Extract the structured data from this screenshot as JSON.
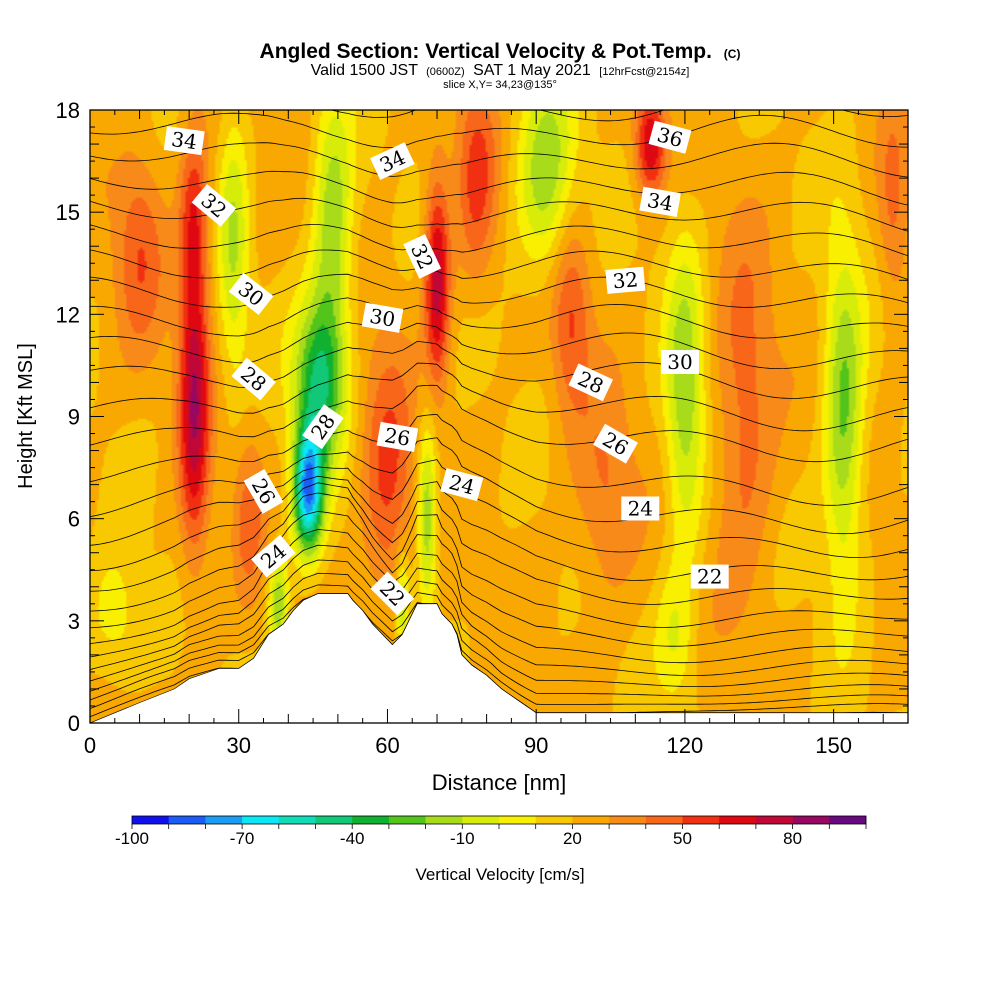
{
  "chart_data": {
    "type": "heatmap",
    "title": "Angled Section: Vertical Velocity & Pot.Temp.",
    "title_suffix": "(C)",
    "subtitle": {
      "valid": "Valid 1500 JST",
      "z_time": "(0600Z)",
      "date": "SAT 1 May 2021",
      "forecast": "[12hrFcst@2154z]"
    },
    "slice_label": "slice X,Y= 34,23@135°",
    "xlabel": "Distance [nm]",
    "ylabel": "Height [Kft MSL]",
    "xlim": [
      0,
      165
    ],
    "ylim": [
      0,
      18
    ],
    "x_ticks": [
      0,
      30,
      60,
      90,
      120,
      150
    ],
    "y_ticks": [
      0,
      3,
      6,
      9,
      12,
      15,
      18
    ],
    "colorbar": {
      "label": "Vertical Velocity [cm/s]",
      "tick_labels": [
        -100,
        -70,
        -40,
        -10,
        20,
        50,
        80
      ],
      "colors": [
        "#1010ee",
        "#1a5cf5",
        "#1a9cf5",
        "#0ae8f5",
        "#10ddb8",
        "#10c878",
        "#10b030",
        "#52c41a",
        "#a8dc1a",
        "#d8ec0a",
        "#f8f000",
        "#f8c800",
        "#f8a800",
        "#f88a1a",
        "#f8661a",
        "#f03010",
        "#e00810",
        "#c00838",
        "#980860",
        "#6a0880"
      ]
    },
    "terrain_kft": [
      [
        0,
        0
      ],
      [
        10,
        0.6
      ],
      [
        17,
        1.0
      ],
      [
        20,
        1.3
      ],
      [
        26,
        1.6
      ],
      [
        30,
        1.6
      ],
      [
        33,
        1.9
      ],
      [
        36,
        2.6
      ],
      [
        39,
        2.9
      ],
      [
        41,
        3.3
      ],
      [
        43,
        3.6
      ],
      [
        46,
        3.8
      ],
      [
        50,
        3.8
      ],
      [
        52,
        3.8
      ],
      [
        53,
        3.6
      ],
      [
        55,
        3.3
      ],
      [
        57,
        2.9
      ],
      [
        59,
        2.6
      ],
      [
        61,
        2.3
      ],
      [
        63,
        2.6
      ],
      [
        65,
        3.2
      ],
      [
        66,
        3.5
      ],
      [
        68,
        3.5
      ],
      [
        70,
        3.5
      ],
      [
        71,
        3.2
      ],
      [
        73,
        2.9
      ],
      [
        74,
        2.6
      ],
      [
        75,
        2.0
      ],
      [
        77,
        1.7
      ],
      [
        80,
        1.4
      ],
      [
        83,
        1.0
      ],
      [
        87,
        0.6
      ],
      [
        90,
        0.3
      ],
      [
        165,
        0.3
      ]
    ],
    "vertical_velocity_features": [
      {
        "x": 21,
        "y": 9.5,
        "sx": 3,
        "sy": 4.5,
        "v": 55
      },
      {
        "x": 21,
        "y": 15,
        "sx": 3,
        "sy": 2.5,
        "v": 30
      },
      {
        "x": 44,
        "y": 6.8,
        "sx": 3,
        "sy": 1.8,
        "v": -95
      },
      {
        "x": 46,
        "y": 10,
        "sx": 5,
        "sy": 2.5,
        "v": -60
      },
      {
        "x": 49,
        "y": 14.5,
        "sx": 4,
        "sy": 4,
        "v": -40
      },
      {
        "x": 29,
        "y": 14,
        "sx": 3,
        "sy": 4,
        "v": -30
      },
      {
        "x": 32,
        "y": 6,
        "sx": 3,
        "sy": 2.5,
        "v": 20
      },
      {
        "x": 38,
        "y": 3.5,
        "sx": 2,
        "sy": 1.5,
        "v": -40
      },
      {
        "x": 70,
        "y": 13,
        "sx": 2.5,
        "sy": 3,
        "v": 55
      },
      {
        "x": 60,
        "y": 7,
        "sx": 5,
        "sy": 4,
        "v": 30
      },
      {
        "x": 68,
        "y": 6,
        "sx": 2,
        "sy": 3,
        "v": -40
      },
      {
        "x": 63,
        "y": 3.5,
        "sx": 1.5,
        "sy": 1.5,
        "v": -35
      },
      {
        "x": 78,
        "y": 16,
        "sx": 4,
        "sy": 3,
        "v": 30
      },
      {
        "x": 92,
        "y": 16,
        "sx": 6,
        "sy": 3,
        "v": -40
      },
      {
        "x": 97,
        "y": 12,
        "sx": 4,
        "sy": 3,
        "v": 30
      },
      {
        "x": 104,
        "y": 6.5,
        "sx": 6,
        "sy": 3,
        "v": 20
      },
      {
        "x": 120,
        "y": 9.5,
        "sx": 4,
        "sy": 4.5,
        "v": -40
      },
      {
        "x": 113,
        "y": 17,
        "sx": 3,
        "sy": 1.5,
        "v": 50
      },
      {
        "x": 118,
        "y": 2.5,
        "sx": 4,
        "sy": 2,
        "v": -20
      },
      {
        "x": 132,
        "y": 9,
        "sx": 6,
        "sy": 5,
        "v": 25
      },
      {
        "x": 152,
        "y": 9,
        "sx": 4,
        "sy": 5,
        "v": -45
      },
      {
        "x": 162,
        "y": 15,
        "sx": 3,
        "sy": 3,
        "v": 20
      },
      {
        "x": 5,
        "y": 3,
        "sx": 6,
        "sy": 2,
        "v": -20
      },
      {
        "x": 10,
        "y": 14,
        "sx": 5,
        "sy": 3,
        "v": 25
      }
    ],
    "theta_contours_base_kft": [
      0.2,
      0.45,
      0.7,
      0.95,
      1.25,
      1.6,
      2.0,
      2.45,
      3.0,
      3.6,
      4.3,
      5.0,
      5.8,
      6.6,
      7.5,
      8.4,
      9.3,
      10.2,
      11.0,
      11.8,
      12.6,
      13.4,
      14.2,
      15.0,
      15.8,
      16.6,
      17.4,
      18.2
    ],
    "contour_labels": [
      {
        "text": "34",
        "x": 19,
        "y": 17.1,
        "angle": 8
      },
      {
        "text": "32",
        "x": 25,
        "y": 15.2,
        "angle": 40
      },
      {
        "text": "30",
        "x": 32.5,
        "y": 12.6,
        "angle": 38
      },
      {
        "text": "28",
        "x": 33,
        "y": 10.1,
        "angle": 40
      },
      {
        "text": "26",
        "x": 35,
        "y": 6.8,
        "angle": 60
      },
      {
        "text": "24",
        "x": 37,
        "y": 4.9,
        "angle": -40
      },
      {
        "text": "28",
        "x": 47,
        "y": 8.7,
        "angle": -55
      },
      {
        "text": "34",
        "x": 61,
        "y": 16.5,
        "angle": -25
      },
      {
        "text": "30",
        "x": 59,
        "y": 11.9,
        "angle": 10
      },
      {
        "text": "32",
        "x": 67,
        "y": 13.7,
        "angle": 65
      },
      {
        "text": "26",
        "x": 62,
        "y": 8.4,
        "angle": 10
      },
      {
        "text": "24",
        "x": 75,
        "y": 7.0,
        "angle": 15
      },
      {
        "text": "22",
        "x": 61,
        "y": 3.8,
        "angle": 45
      },
      {
        "text": "36",
        "x": 117,
        "y": 17.2,
        "angle": 15
      },
      {
        "text": "34",
        "x": 115,
        "y": 15.3,
        "angle": 10
      },
      {
        "text": "32",
        "x": 108,
        "y": 13.0,
        "angle": -5
      },
      {
        "text": "30",
        "x": 119,
        "y": 10.6,
        "angle": 0
      },
      {
        "text": "28",
        "x": 101,
        "y": 10.0,
        "angle": 25
      },
      {
        "text": "26",
        "x": 106,
        "y": 8.2,
        "angle": 30
      },
      {
        "text": "24",
        "x": 111,
        "y": 6.3,
        "angle": 0
      },
      {
        "text": "22",
        "x": 125,
        "y": 4.3,
        "angle": 0
      }
    ]
  }
}
